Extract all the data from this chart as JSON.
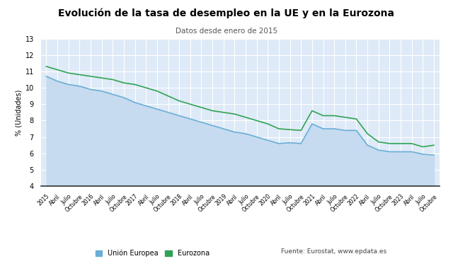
{
  "title": "Evolución de la tasa de desempleo en la UE y en la Eurozona",
  "subtitle": "Datos desde enero de 2015",
  "ylabel": "% (Unidades)",
  "source_text": "Fuente: Eurostat, www.epdata.es",
  "ylim": [
    4,
    13
  ],
  "yticks": [
    4,
    5,
    6,
    7,
    8,
    9,
    10,
    11,
    12,
    13
  ],
  "xtick_labels": [
    "2015",
    "Abril",
    "Julio",
    "Octubre",
    "2016",
    "Abril",
    "Julio",
    "Octubre",
    "2017",
    "Abril",
    "Julio",
    "Octubre",
    "2018",
    "Abril",
    "Julio",
    "Octubre",
    "2019",
    "Abril",
    "Julio",
    "Octubre",
    "2020",
    "Abril",
    "Julio",
    "Octubre",
    "2021",
    "Abril",
    "Julio",
    "Octubre",
    "2022",
    "Abril",
    "Julio",
    "Octubre",
    "2023",
    "Abril",
    "Julio",
    "Octubre"
  ],
  "eu_color": "#6baed6",
  "eurozone_color": "#31a354",
  "fill_color": "#c6dbef",
  "background_color": "#deeaf7",
  "eu_values": [
    10.7,
    10.4,
    10.2,
    10.1,
    9.9,
    9.8,
    9.6,
    9.4,
    9.1,
    8.9,
    8.7,
    8.5,
    8.3,
    8.1,
    7.9,
    7.7,
    7.5,
    7.3,
    7.2,
    7.0,
    6.8,
    6.6,
    6.65,
    6.6,
    7.8,
    7.5,
    7.5,
    7.4,
    7.4,
    6.5,
    6.2,
    6.1,
    6.1,
    6.1,
    5.95,
    5.9
  ],
  "eurozone_values": [
    11.3,
    11.1,
    10.9,
    10.8,
    10.7,
    10.6,
    10.5,
    10.3,
    10.2,
    10.0,
    9.8,
    9.5,
    9.2,
    9.0,
    8.8,
    8.6,
    8.5,
    8.4,
    8.2,
    8.0,
    7.8,
    7.5,
    7.45,
    7.4,
    8.6,
    8.3,
    8.3,
    8.2,
    8.1,
    7.2,
    6.7,
    6.6,
    6.6,
    6.6,
    6.4,
    6.5
  ]
}
